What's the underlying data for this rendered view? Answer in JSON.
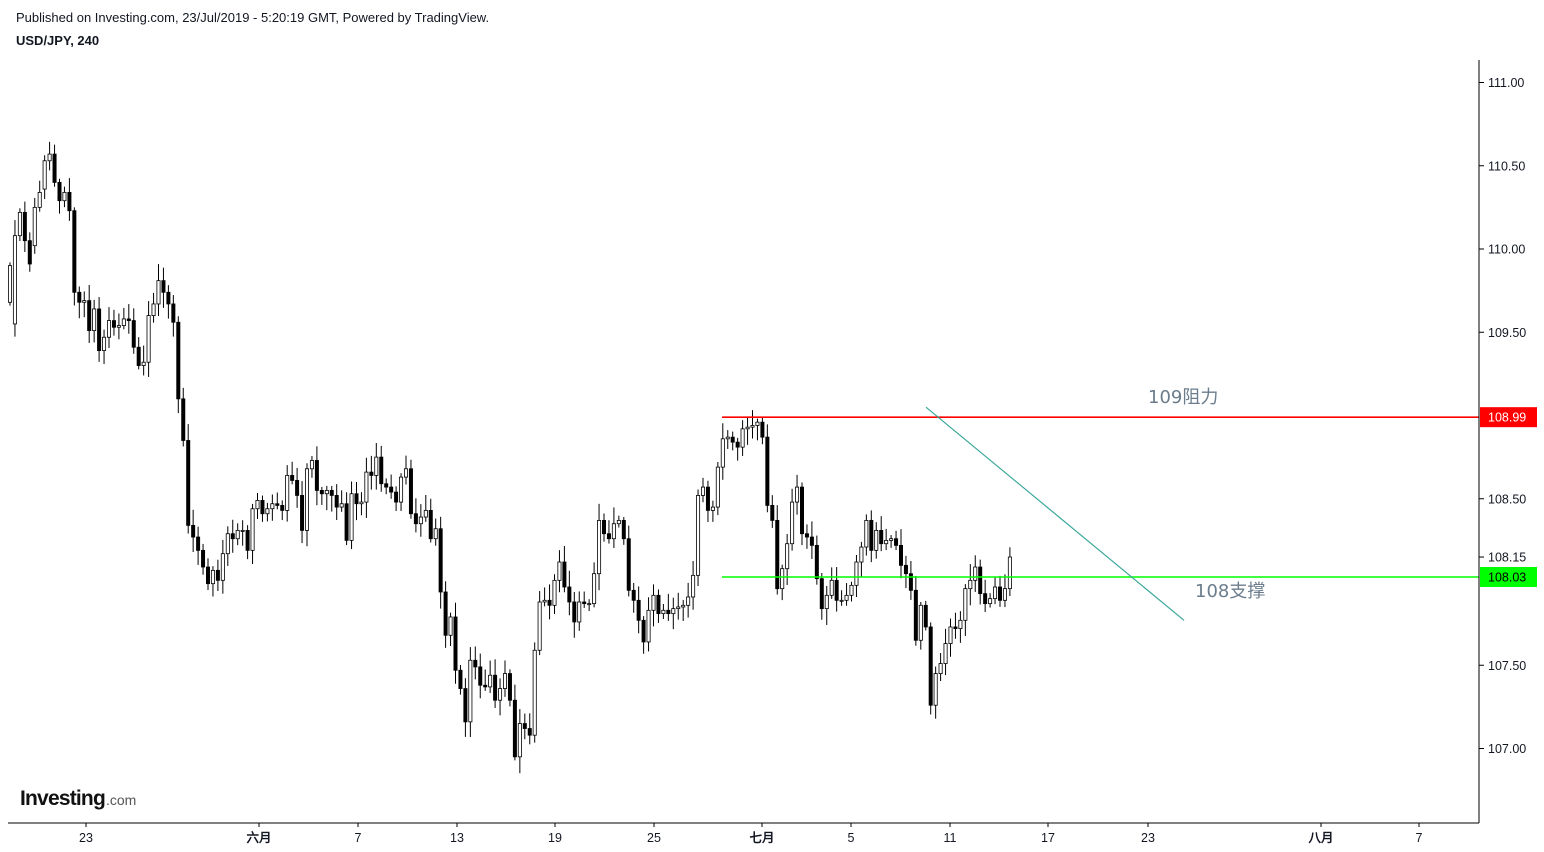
{
  "header": {
    "published": "Published on Investing.com, 23/Jul/2019 - 5:20:19 GMT, Powered by TradingView.",
    "symbol": "USD/JPY, 240"
  },
  "logo": {
    "main": "Investing",
    "suffix": ".com"
  },
  "chart_data": {
    "type": "candlestick",
    "ylim": [
      106.6,
      111.2
    ],
    "y_ticks": [
      "111.00",
      "110.50",
      "110.00",
      "109.50",
      "108.50",
      "108.15",
      "107.50",
      "107.00"
    ],
    "x_ticks": [
      "23",
      "六月",
      "7",
      "13",
      "19",
      "25",
      "七月",
      "5",
      "11",
      "17",
      "23",
      "八月",
      "7"
    ],
    "last_price": "108.15",
    "levels": [
      {
        "label": "109阻力",
        "price": 108.99,
        "tag": "108.99",
        "color": "#ff0000"
      },
      {
        "label": "108支撑",
        "price": 108.03,
        "tag": "108.03",
        "color": "#00ff00"
      }
    ],
    "trendline": {
      "color": "#3aa79a",
      "from_price": 109.05,
      "to_price": 107.77
    },
    "candles": [
      [
        109.68,
        109.9
      ],
      [
        109.55,
        110.08
      ],
      [
        110.08,
        110.22
      ],
      [
        110.22,
        110.05
      ],
      [
        110.05,
        109.91
      ],
      [
        110.02,
        110.25
      ],
      [
        110.25,
        110.34
      ],
      [
        110.36,
        110.53
      ],
      [
        110.53,
        110.57
      ],
      [
        110.57,
        110.4
      ],
      [
        110.4,
        110.29
      ],
      [
        110.29,
        110.34
      ],
      [
        110.34,
        110.23
      ],
      [
        110.23,
        109.74
      ],
      [
        109.74,
        109.68
      ],
      [
        109.68,
        109.69
      ],
      [
        109.69,
        109.51
      ],
      [
        109.51,
        109.64
      ],
      [
        109.64,
        109.39
      ],
      [
        109.39,
        109.47
      ],
      [
        109.47,
        109.57
      ],
      [
        109.57,
        109.53
      ],
      [
        109.53,
        109.54
      ],
      [
        109.54,
        109.58
      ],
      [
        109.58,
        109.57
      ],
      [
        109.57,
        109.41
      ],
      [
        109.41,
        109.3
      ],
      [
        109.3,
        109.32
      ],
      [
        109.32,
        109.6
      ],
      [
        109.6,
        109.67
      ],
      [
        109.67,
        109.81
      ],
      [
        109.81,
        109.74
      ],
      [
        109.74,
        109.67
      ],
      [
        109.67,
        109.56
      ],
      [
        109.56,
        109.1
      ],
      [
        109.1,
        108.85
      ],
      [
        108.85,
        108.34
      ],
      [
        108.34,
        108.27
      ],
      [
        108.27,
        108.19
      ],
      [
        108.19,
        108.09
      ],
      [
        108.09,
        107.99
      ],
      [
        107.99,
        108.07
      ],
      [
        108.07,
        108.01
      ],
      [
        108.01,
        108.17
      ],
      [
        108.17,
        108.29
      ],
      [
        108.29,
        108.26
      ],
      [
        108.26,
        108.31
      ],
      [
        108.31,
        108.31
      ],
      [
        108.31,
        108.19
      ],
      [
        108.19,
        108.44
      ],
      [
        108.44,
        108.49
      ],
      [
        108.49,
        108.41
      ],
      [
        108.41,
        108.44
      ],
      [
        108.44,
        108.47
      ],
      [
        108.47,
        108.46
      ],
      [
        108.46,
        108.43
      ],
      [
        108.43,
        108.64
      ],
      [
        108.64,
        108.61
      ],
      [
        108.61,
        108.52
      ],
      [
        108.52,
        108.31
      ],
      [
        108.31,
        108.68
      ],
      [
        108.68,
        108.73
      ],
      [
        108.73,
        108.55
      ],
      [
        108.55,
        108.53
      ],
      [
        108.53,
        108.55
      ],
      [
        108.55,
        108.52
      ],
      [
        108.52,
        108.45
      ],
      [
        108.45,
        108.47
      ],
      [
        108.47,
        108.25
      ],
      [
        108.25,
        108.53
      ],
      [
        108.53,
        108.47
      ],
      [
        108.47,
        108.48
      ],
      [
        108.48,
        108.66
      ],
      [
        108.66,
        108.64
      ],
      [
        108.64,
        108.75
      ],
      [
        108.75,
        108.59
      ],
      [
        108.59,
        108.57
      ],
      [
        108.57,
        108.54
      ],
      [
        108.54,
        108.48
      ],
      [
        108.48,
        108.63
      ],
      [
        108.63,
        108.68
      ],
      [
        108.68,
        108.41
      ],
      [
        108.41,
        108.35
      ],
      [
        108.35,
        108.39
      ],
      [
        108.39,
        108.43
      ],
      [
        108.43,
        108.26
      ],
      [
        108.26,
        108.32
      ],
      [
        108.32,
        107.94
      ],
      [
        107.94,
        107.68
      ],
      [
        107.68,
        107.79
      ],
      [
        107.79,
        107.47
      ],
      [
        107.47,
        107.36
      ],
      [
        107.36,
        107.16
      ],
      [
        107.16,
        107.53
      ],
      [
        107.53,
        107.49
      ],
      [
        107.49,
        107.38
      ],
      [
        107.38,
        107.37
      ],
      [
        107.37,
        107.44
      ],
      [
        107.44,
        107.29
      ],
      [
        107.29,
        107.36
      ],
      [
        107.36,
        107.45
      ],
      [
        107.45,
        107.29
      ],
      [
        107.29,
        106.95
      ],
      [
        106.95,
        107.15
      ],
      [
        107.15,
        107.12
      ],
      [
        107.12,
        107.08
      ],
      [
        107.08,
        107.59
      ],
      [
        107.59,
        107.88
      ],
      [
        107.88,
        107.89
      ],
      [
        107.89,
        107.86
      ],
      [
        107.86,
        108.01
      ],
      [
        108.01,
        108.12
      ],
      [
        108.12,
        107.97
      ],
      [
        107.97,
        107.88
      ],
      [
        107.88,
        107.76
      ],
      [
        107.76,
        107.88
      ],
      [
        107.88,
        107.87
      ],
      [
        107.87,
        107.87
      ],
      [
        107.87,
        108.05
      ],
      [
        108.05,
        108.37
      ],
      [
        108.37,
        108.29
      ],
      [
        108.29,
        108.26
      ],
      [
        108.26,
        108.35
      ],
      [
        108.35,
        108.37
      ],
      [
        108.37,
        108.26
      ],
      [
        108.26,
        107.95
      ],
      [
        107.95,
        107.89
      ],
      [
        107.89,
        107.77
      ],
      [
        107.77,
        107.64
      ],
      [
        107.64,
        107.83
      ],
      [
        107.83,
        107.92
      ],
      [
        107.92,
        107.81
      ],
      [
        107.81,
        107.83
      ],
      [
        107.83,
        107.81
      ],
      [
        107.81,
        107.84
      ],
      [
        107.84,
        107.85
      ],
      [
        107.85,
        107.86
      ],
      [
        107.86,
        107.91
      ],
      [
        107.91,
        108.04
      ],
      [
        108.04,
        108.52
      ],
      [
        108.52,
        108.57
      ],
      [
        108.57,
        108.43
      ],
      [
        108.43,
        108.45
      ],
      [
        108.45,
        108.69
      ],
      [
        108.69,
        108.86
      ],
      [
        108.86,
        108.87
      ],
      [
        108.87,
        108.84
      ],
      [
        108.84,
        108.81
      ],
      [
        108.81,
        108.92
      ],
      [
        108.92,
        108.93
      ],
      [
        108.93,
        108.94
      ],
      [
        108.94,
        108.96
      ],
      [
        108.96,
        108.87
      ],
      [
        108.87,
        108.46
      ],
      [
        108.46,
        108.37
      ],
      [
        108.37,
        107.96
      ],
      [
        107.96,
        108.08
      ],
      [
        108.08,
        108.23
      ],
      [
        108.23,
        108.48
      ],
      [
        108.48,
        108.57
      ],
      [
        108.57,
        108.29
      ],
      [
        108.29,
        108.27
      ],
      [
        108.27,
        108.22
      ],
      [
        108.22,
        108.02
      ],
      [
        108.02,
        107.84
      ],
      [
        107.84,
        107.92
      ],
      [
        107.92,
        108.01
      ],
      [
        108.01,
        107.89
      ],
      [
        107.89,
        107.89
      ],
      [
        107.89,
        107.92
      ],
      [
        107.92,
        107.98
      ],
      [
        107.98,
        108.12
      ],
      [
        108.12,
        108.21
      ],
      [
        108.21,
        108.37
      ],
      [
        108.37,
        108.19
      ],
      [
        108.19,
        108.31
      ],
      [
        108.31,
        108.23
      ],
      [
        108.23,
        108.25
      ],
      [
        108.25,
        108.26
      ],
      [
        108.26,
        108.22
      ],
      [
        108.22,
        108.1
      ],
      [
        108.1,
        108.05
      ],
      [
        108.05,
        107.95
      ],
      [
        107.95,
        107.65
      ],
      [
        107.65,
        107.86
      ],
      [
        107.86,
        107.73
      ],
      [
        107.73,
        107.26
      ],
      [
        107.26,
        107.45
      ],
      [
        107.45,
        107.51
      ],
      [
        107.51,
        107.63
      ],
      [
        107.63,
        107.73
      ],
      [
        107.73,
        107.72
      ],
      [
        107.72,
        107.77
      ],
      [
        107.77,
        107.96
      ],
      [
        107.96,
        108.01
      ],
      [
        108.01,
        108.09
      ],
      [
        108.09,
        107.93
      ],
      [
        107.93,
        107.87
      ],
      [
        107.87,
        107.9
      ],
      [
        107.9,
        107.97
      ],
      [
        107.97,
        107.89
      ],
      [
        107.89,
        107.96
      ],
      [
        107.96,
        108.15
      ]
    ]
  }
}
